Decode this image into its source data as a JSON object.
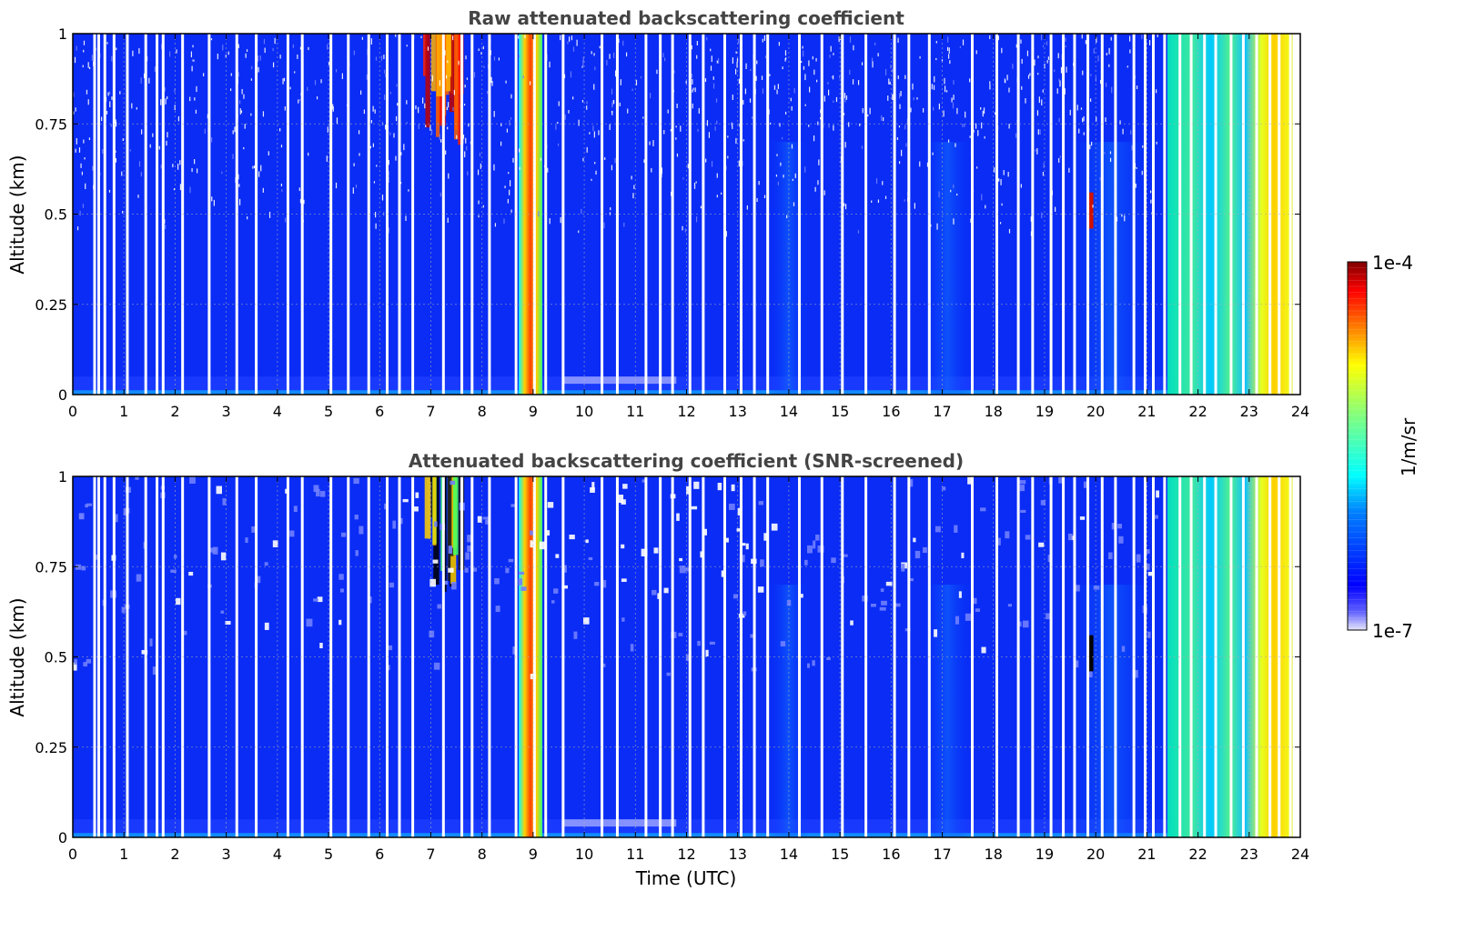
{
  "chart_data": [
    {
      "type": "heatmap",
      "id": "raw",
      "title": "Raw attenuated backscattering coefficient",
      "xlabel": "",
      "ylabel": "Altitude (km)",
      "xlim": [
        0,
        24
      ],
      "ylim": [
        0,
        1
      ],
      "xticks": [
        "0",
        "1",
        "2",
        "3",
        "4",
        "5",
        "6",
        "7",
        "8",
        "9",
        "10",
        "11",
        "12",
        "13",
        "14",
        "15",
        "16",
        "17",
        "18",
        "19",
        "20",
        "21",
        "22",
        "23",
        "24"
      ],
      "yticks": [
        "0",
        "0.25",
        "0.5",
        "0.75",
        "1"
      ],
      "grid": true
    },
    {
      "type": "heatmap",
      "id": "snr",
      "title": "Attenuated backscattering coefficient (SNR-screened)",
      "xlabel": "Time (UTC)",
      "ylabel": "Altitude (km)",
      "xlim": [
        0,
        24
      ],
      "ylim": [
        0,
        1
      ],
      "xticks": [
        "0",
        "1",
        "2",
        "3",
        "4",
        "5",
        "6",
        "7",
        "8",
        "9",
        "10",
        "11",
        "12",
        "13",
        "14",
        "15",
        "16",
        "17",
        "18",
        "19",
        "20",
        "21",
        "22",
        "23",
        "24"
      ],
      "yticks": [
        "0",
        "0.25",
        "0.5",
        "0.75",
        "1"
      ],
      "grid": true
    }
  ],
  "colorbar": {
    "label": "1/m/sr",
    "max_label": "1e-4",
    "min_label": "1e-7",
    "scale": "log",
    "range": [
      1e-07,
      0.0001
    ],
    "colors": [
      "#e6e6fa",
      "#0000ff",
      "#00bfff",
      "#00ffff",
      "#80ff80",
      "#ffff00",
      "#ff8000",
      "#ff0000",
      "#800000"
    ]
  },
  "features": {
    "gaps_hours": [
      0.4,
      0.48,
      0.6,
      0.78,
      1.04,
      1.4,
      1.62,
      1.74,
      2.12,
      2.64,
      3.18,
      3.56,
      4.18,
      4.46,
      5.02,
      5.36,
      5.76,
      6.12,
      6.36,
      6.62,
      7.22,
      7.58,
      7.78,
      8.12,
      8.64,
      9.0,
      9.22,
      9.56,
      10.32,
      10.62,
      11.18,
      11.46,
      11.7,
      12.04,
      12.3,
      12.72,
      13.04,
      13.3,
      13.56,
      14.18,
      14.62,
      15.02,
      15.48,
      16.04,
      16.32,
      16.72,
      17.56,
      18.04,
      18.46,
      18.74,
      19.1,
      19.34,
      19.56,
      19.82,
      20.1,
      20.36,
      20.72,
      20.94,
      21.1,
      21.32,
      21.62,
      21.84,
      22.1,
      22.32,
      22.62,
      22.86,
      23.12,
      23.38,
      23.56,
      23.78
    ],
    "aerosol_layer_9utc": 9,
    "snow_clouds_7utc": 7.2,
    "feature_20utc": 19.9,
    "elevated_signal_from_utc": 21.4,
    "end_of_data_utc": 23.85
  }
}
